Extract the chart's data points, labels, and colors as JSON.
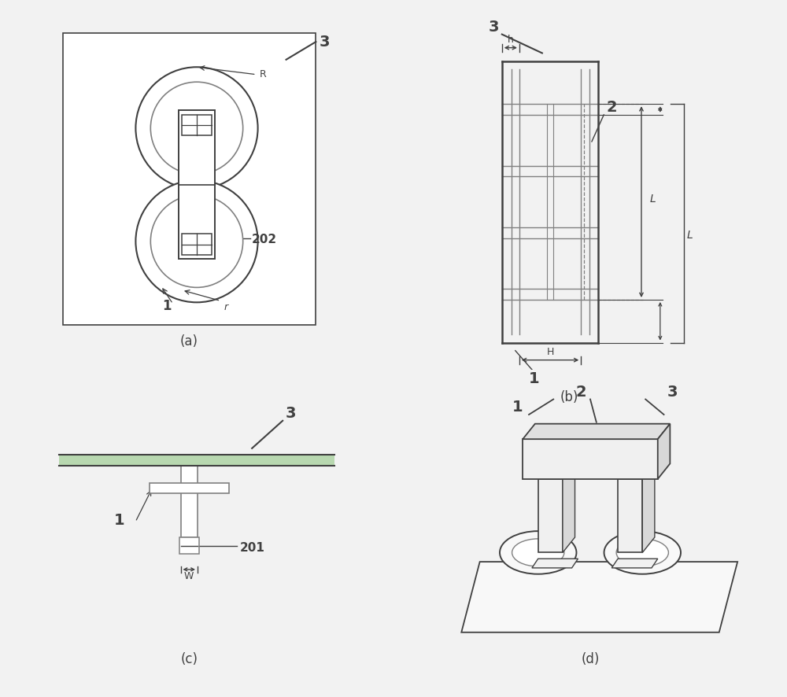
{
  "bg_color": "#f2f2f2",
  "panel_bg": "#ffffff",
  "lc": "#404040",
  "lc_l": "#808080",
  "lc_green": "#7aaa7a",
  "title_a": "(a)",
  "title_b": "(b)",
  "title_c": "(c)",
  "title_d": "(d)"
}
